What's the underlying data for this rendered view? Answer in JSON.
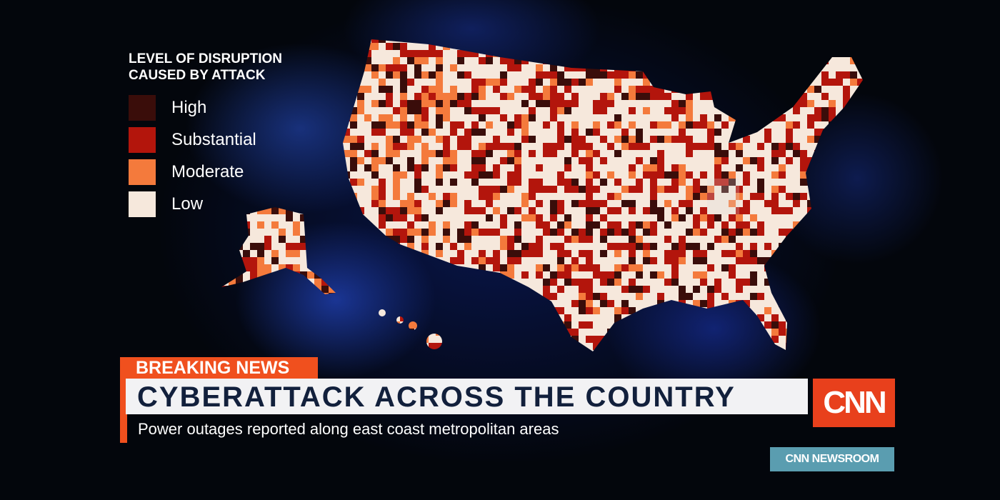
{
  "legend": {
    "title_line1": "LEVEL OF DISRUPTION",
    "title_line2": "CAUSED BY ATTACK",
    "items": [
      {
        "label": "High",
        "color": "#3a0d0a"
      },
      {
        "label": "Substantial",
        "color": "#b3150c"
      },
      {
        "label": "Moderate",
        "color": "#f47a3c"
      },
      {
        "label": "Low",
        "color": "#f6e8dc"
      }
    ]
  },
  "banner": {
    "tag": "BREAKING NEWS",
    "headline": "CYBERATTACK ACROSS THE COUNTRY",
    "subheadline": "Power outages reported along east coast metropolitan areas"
  },
  "logo": "CNN",
  "program": "CNN NEWSROOM"
}
